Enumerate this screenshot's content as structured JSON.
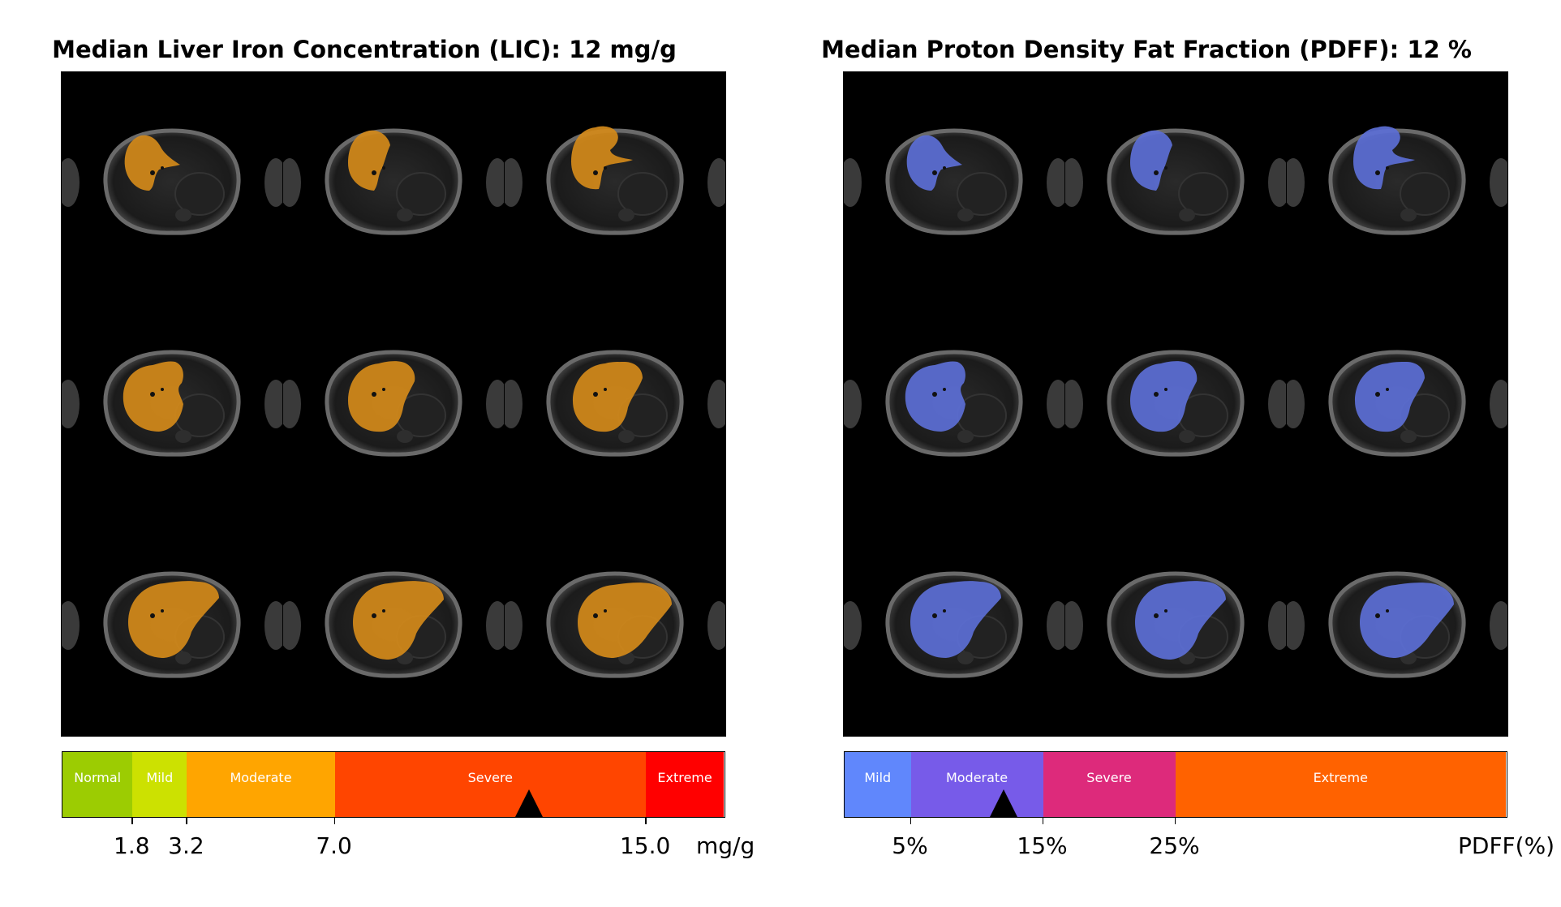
{
  "colors": {
    "lic_overlay": "#d48a1a",
    "pdff_overlay": "#5c6fd6",
    "marker": "#000000"
  },
  "chart_data": [
    {
      "type": "bar",
      "title": "Median Liver Iron Concentration (LIC): 12 mg/g",
      "unit": "mg/g",
      "median_value": 12,
      "range": [
        0,
        17
      ],
      "bands": [
        {
          "label": "Normal",
          "from": 0,
          "to": 1.8,
          "color": "#9ccc02"
        },
        {
          "label": "Mild",
          "from": 1.8,
          "to": 3.2,
          "color": "#cce101"
        },
        {
          "label": "Moderate",
          "from": 3.2,
          "to": 7.0,
          "color": "#ffa500"
        },
        {
          "label": "Severe",
          "from": 7.0,
          "to": 15.0,
          "color": "#ff4500"
        },
        {
          "label": "Extreme",
          "from": 15.0,
          "to": 17,
          "color": "#ff0000"
        }
      ],
      "ticks": [
        "1.8",
        "3.2",
        "7.0",
        "15.0"
      ],
      "tick_values": [
        1.8,
        3.2,
        7.0,
        15.0
      ],
      "slices": 9,
      "overlay": "lic"
    },
    {
      "type": "bar",
      "title": "Median Proton Density Fat Fraction (PDFF): 12 %",
      "unit": "PDFF(%)",
      "median_value": 12,
      "range": [
        0,
        50
      ],
      "bands": [
        {
          "label": "Mild",
          "from": 0,
          "to": 5,
          "color": "#6087fc"
        },
        {
          "label": "Moderate",
          "from": 5,
          "to": 15,
          "color": "#775be9"
        },
        {
          "label": "Severe",
          "from": 15,
          "to": 25,
          "color": "#dd2a7b"
        },
        {
          "label": "Extreme",
          "from": 25,
          "to": 50,
          "color": "#ff6200"
        }
      ],
      "ticks": [
        "5%",
        "15%",
        "25%"
      ],
      "tick_values": [
        5,
        15,
        25
      ],
      "slices": 9,
      "overlay": "pdff"
    }
  ]
}
